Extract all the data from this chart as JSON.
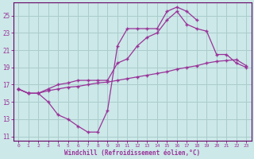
{
  "xlabel": "Windchill (Refroidissement éolien,°C)",
  "background_color": "#cce8e8",
  "grid_color": "#aacccc",
  "line_color": "#993399",
  "spine_color": "#660066",
  "xmin": -0.5,
  "xmax": 23.5,
  "ymin": 10.5,
  "ymax": 26.5,
  "yticks": [
    11,
    13,
    15,
    17,
    19,
    21,
    23,
    25
  ],
  "xticks": [
    0,
    1,
    2,
    3,
    4,
    5,
    6,
    7,
    8,
    9,
    10,
    11,
    12,
    13,
    14,
    15,
    16,
    17,
    18,
    19,
    20,
    21,
    22,
    23
  ],
  "line1_x": [
    0,
    1,
    2,
    3,
    4,
    5,
    6,
    7,
    8,
    9,
    10,
    11,
    12,
    13,
    14,
    15,
    16,
    17,
    18
  ],
  "line1_y": [
    16.5,
    16.0,
    16.0,
    15.0,
    13.5,
    13.0,
    12.2,
    11.5,
    11.5,
    14.0,
    21.5,
    23.5,
    23.5,
    23.5,
    23.5,
    25.5,
    26.0,
    25.5,
    24.5
  ],
  "line2_x": [
    0,
    1,
    2,
    3,
    4,
    5,
    6,
    7,
    8,
    9,
    10,
    11,
    12,
    13,
    14,
    15,
    16,
    17,
    18,
    19,
    20,
    21,
    22,
    23
  ],
  "line2_y": [
    16.5,
    16.0,
    16.0,
    16.3,
    16.5,
    16.7,
    16.8,
    17.0,
    17.2,
    17.3,
    17.5,
    17.7,
    17.9,
    18.1,
    18.3,
    18.5,
    18.8,
    19.0,
    19.2,
    19.5,
    19.7,
    19.8,
    19.9,
    19.2
  ],
  "line3_x": [
    0,
    1,
    2,
    3,
    4,
    5,
    6,
    7,
    8,
    9,
    10,
    11,
    12,
    13,
    14,
    15,
    16,
    17,
    18,
    19,
    20,
    21,
    22,
    23
  ],
  "line3_y": [
    16.5,
    16.0,
    16.0,
    16.5,
    17.0,
    17.2,
    17.5,
    17.5,
    17.5,
    17.5,
    19.5,
    20.0,
    21.5,
    22.5,
    23.0,
    24.5,
    25.5,
    24.0,
    23.5,
    23.2,
    20.5,
    20.5,
    19.5,
    19.0
  ]
}
